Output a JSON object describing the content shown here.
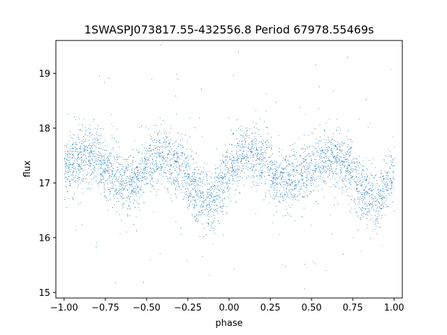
{
  "chart_data": {
    "type": "scatter",
    "title": "1SWASPJ073817.55-432556.8 Period 67978.55469s",
    "xlabel": "phase",
    "ylabel": "flux",
    "xlim": [
      -1.05,
      1.05
    ],
    "ylim": [
      14.9,
      19.6
    ],
    "x_ticks": [
      -1.0,
      -0.75,
      -0.5,
      -0.25,
      0.0,
      0.25,
      0.5,
      0.75,
      1.0
    ],
    "x_tick_labels": [
      "−1.00",
      "−0.75",
      "−0.50",
      "−0.25",
      "0.00",
      "0.25",
      "0.50",
      "0.75",
      "1.00"
    ],
    "y_ticks": [
      15,
      16,
      17,
      18,
      19
    ],
    "y_tick_labels": [
      "15",
      "16",
      "17",
      "18",
      "19"
    ],
    "grid": false,
    "marker_color": "#1f77b4",
    "series": [
      {
        "note_phase_profile_x": [
          -1.0,
          -0.95,
          -0.9,
          -0.85,
          -0.8,
          -0.75,
          -0.7,
          -0.65,
          -0.6,
          -0.55,
          -0.5,
          -0.45,
          -0.4,
          -0.35,
          -0.3,
          -0.25,
          -0.2,
          -0.15,
          -0.1,
          -0.05,
          0.0,
          0.05,
          0.1,
          0.15,
          0.2,
          0.25,
          0.3,
          0.35,
          0.4,
          0.45,
          0.5,
          0.55,
          0.6,
          0.65,
          0.7,
          0.75,
          0.8,
          0.85,
          0.9,
          0.95,
          1.0
        ],
        "note_phase_profile_y": [
          17.25,
          17.35,
          17.45,
          17.5,
          17.45,
          17.3,
          17.15,
          17.05,
          17.0,
          17.1,
          17.3,
          17.4,
          17.45,
          17.4,
          17.3,
          17.1,
          16.85,
          16.65,
          16.7,
          16.95,
          17.25,
          17.4,
          17.5,
          17.5,
          17.4,
          17.25,
          17.1,
          17.05,
          17.05,
          17.15,
          17.3,
          17.4,
          17.45,
          17.45,
          17.35,
          17.15,
          16.9,
          16.7,
          16.65,
          16.95,
          17.3
        ]
      }
    ]
  }
}
